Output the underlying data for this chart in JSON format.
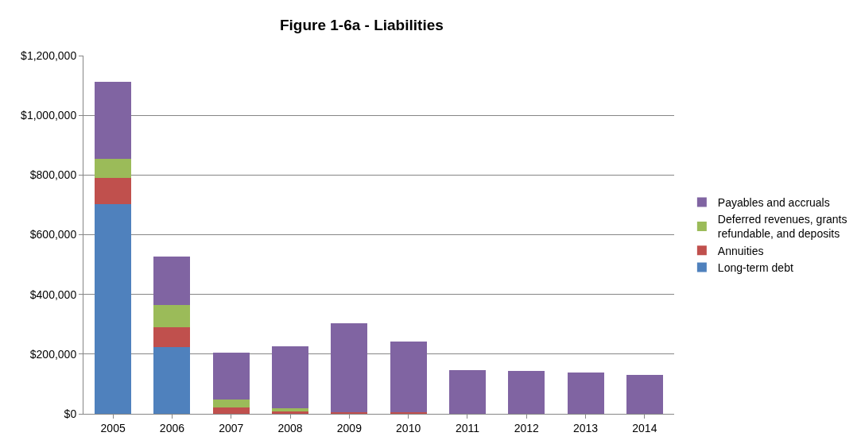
{
  "chart_data": {
    "type": "bar",
    "stacked": true,
    "title": "Figure 1-6a - Liabilities",
    "categories": [
      "2005",
      "2006",
      "2007",
      "2008",
      "2009",
      "2010",
      "2011",
      "2012",
      "2013",
      "2014"
    ],
    "series": [
      {
        "name": "Long-term debt",
        "color": "#4f81bd",
        "values": [
          702000,
          224000,
          0,
          0,
          0,
          0,
          0,
          0,
          0,
          0
        ]
      },
      {
        "name": "Annuities",
        "color": "#c0504d",
        "values": [
          87000,
          66000,
          20000,
          7000,
          5000,
          5000,
          0,
          0,
          0,
          0
        ]
      },
      {
        "name": "Deferred revenues, grants refundable, and deposits",
        "color": "#9bbb59",
        "values": [
          65000,
          74000,
          28000,
          12000,
          0,
          0,
          0,
          0,
          0,
          0
        ]
      },
      {
        "name": "Payables and accruals",
        "color": "#8064a2",
        "values": [
          257000,
          163000,
          156000,
          208000,
          299000,
          238000,
          146000,
          145000,
          138000,
          130000
        ]
      }
    ],
    "ylim": [
      0,
      1200000
    ],
    "yticks": [
      {
        "value": 0,
        "label": "$0"
      },
      {
        "value": 200000,
        "label": "$200,000"
      },
      {
        "value": 400000,
        "label": "$400,000"
      },
      {
        "value": 600000,
        "label": "$600,000"
      },
      {
        "value": 800000,
        "label": "$800,000"
      },
      {
        "value": 1000000,
        "label": "$1,000,000"
      },
      {
        "value": 1200000,
        "label": "$1,200,000"
      }
    ],
    "grid": "y",
    "legend": "right"
  }
}
